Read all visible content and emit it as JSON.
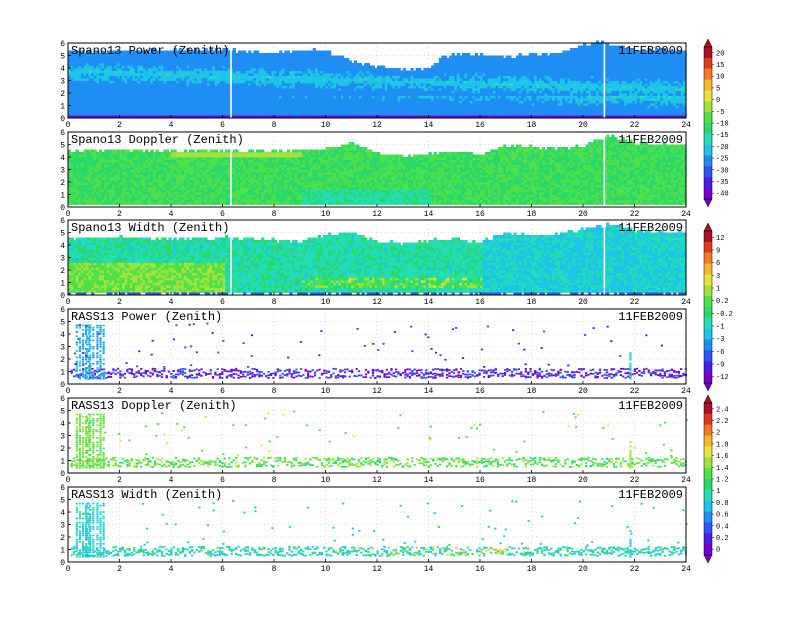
{
  "chart_data": [
    {
      "type": "heatmap",
      "title": "Spano13 Power (Zenith)",
      "date": "11FEB2009",
      "xlim": [
        0,
        24
      ],
      "ylim": [
        0,
        6
      ],
      "xticks": [
        "0",
        "2",
        "4",
        "6",
        "8",
        "10",
        "12",
        "14",
        "16",
        "18",
        "20",
        "22",
        "24"
      ],
      "yticks": [
        "0",
        "1",
        "2",
        "3",
        "4",
        "5",
        "6"
      ],
      "top_profile": [
        [
          0,
          5.3
        ],
        [
          1,
          5.2
        ],
        [
          2,
          5.3
        ],
        [
          3,
          5.3
        ],
        [
          4,
          5.4
        ],
        [
          5,
          5.4
        ],
        [
          6,
          5.4
        ],
        [
          7,
          5.2
        ],
        [
          8,
          5.1
        ],
        [
          9,
          5.3
        ],
        [
          10,
          5.3
        ],
        [
          11,
          4.4
        ],
        [
          12,
          4.0
        ],
        [
          13,
          3.7
        ],
        [
          14,
          3.9
        ],
        [
          14.5,
          4.8
        ],
        [
          15,
          5.0
        ],
        [
          16,
          5.0
        ],
        [
          17,
          4.8
        ],
        [
          18,
          5.0
        ],
        [
          19,
          5.1
        ],
        [
          19.8,
          5.6
        ],
        [
          20.5,
          6.0
        ],
        [
          22,
          5.4
        ],
        [
          24,
          5.3
        ]
      ],
      "description": "reflectivity-style power; warm band descending 3.6 km -> 2.2 km",
      "colorbar": {
        "ticks": [
          "20",
          "15",
          "10",
          "5",
          "0",
          "-5",
          "-10",
          "-15",
          "-20",
          "-25",
          "-30",
          "-35",
          "-40"
        ]
      }
    },
    {
      "type": "heatmap",
      "title": "Spano13 Doppler (Zenith)",
      "date": "11FEB2009",
      "xlim": [
        0,
        24
      ],
      "ylim": [
        0,
        6
      ],
      "xticks": [
        "0",
        "2",
        "4",
        "6",
        "8",
        "10",
        "12",
        "14",
        "16",
        "18",
        "20",
        "22",
        "24"
      ],
      "yticks": [
        "0",
        "1",
        "2",
        "3",
        "4",
        "5",
        "6"
      ],
      "top_profile": [
        [
          0,
          4.4
        ],
        [
          2,
          4.5
        ],
        [
          4,
          4.4
        ],
        [
          5,
          4.5
        ],
        [
          6,
          4.4
        ],
        [
          7,
          4.3
        ],
        [
          8,
          4.4
        ],
        [
          9,
          4.4
        ],
        [
          10,
          4.6
        ],
        [
          11,
          5.0
        ],
        [
          12,
          4.2
        ],
        [
          13,
          4.0
        ],
        [
          14,
          4.2
        ],
        [
          15,
          4.3
        ],
        [
          16,
          4.2
        ],
        [
          17,
          4.9
        ],
        [
          18,
          4.7
        ],
        [
          19,
          4.6
        ],
        [
          20,
          4.8
        ],
        [
          21,
          5.6
        ],
        [
          22,
          5.0
        ],
        [
          24,
          4.9
        ]
      ],
      "colorbar": null
    },
    {
      "type": "heatmap",
      "title": "Spano13 Width (Zenith)",
      "date": "11FEB2009",
      "xlim": [
        0,
        24
      ],
      "ylim": [
        0,
        6
      ],
      "xticks": [
        "0",
        "2",
        "4",
        "6",
        "8",
        "10",
        "12",
        "14",
        "16",
        "18",
        "20",
        "22",
        "24"
      ],
      "yticks": [
        "0",
        "1",
        "2",
        "3",
        "4",
        "5",
        "6"
      ],
      "top_profile": [
        [
          0,
          4.4
        ],
        [
          2,
          4.5
        ],
        [
          4,
          4.4
        ],
        [
          6,
          4.5
        ],
        [
          7,
          4.4
        ],
        [
          8,
          4.3
        ],
        [
          9,
          4.3
        ],
        [
          10,
          4.7
        ],
        [
          11,
          4.9
        ],
        [
          12,
          4.2
        ],
        [
          13,
          4.0
        ],
        [
          14,
          4.3
        ],
        [
          15,
          4.4
        ],
        [
          16,
          4.2
        ],
        [
          17,
          4.9
        ],
        [
          18,
          4.7
        ],
        [
          19,
          4.8
        ],
        [
          20,
          5.2
        ],
        [
          21,
          5.6
        ],
        [
          22,
          5.0
        ],
        [
          24,
          4.9
        ]
      ],
      "colorbar": {
        "ticks": [
          "12",
          "9",
          "6",
          "3",
          "1",
          "0.2",
          "-0.2",
          "-1",
          "-3",
          "-6",
          "-9",
          "-12"
        ]
      }
    },
    {
      "type": "heatmap",
      "title": "RASS13 Power (Zenith)",
      "date": "11FEB2009",
      "xlim": [
        0,
        24
      ],
      "ylim": [
        0,
        6
      ],
      "xticks": [
        "0",
        "2",
        "4",
        "6",
        "8",
        "10",
        "12",
        "14",
        "16",
        "18",
        "20",
        "22",
        "24"
      ],
      "yticks": [
        "0",
        "1",
        "2",
        "3",
        "4",
        "5",
        "6"
      ],
      "description": "sparse RASS returns mostly 0.5-1.3 km; tall columns near 0-1.5 h and 21.8 h",
      "colorbar": null
    },
    {
      "type": "heatmap",
      "title": "RASS13 Doppler (Zenith)",
      "date": "11FEB2009",
      "xlim": [
        0,
        24
      ],
      "ylim": [
        0,
        6
      ],
      "xticks": [
        "0",
        "2",
        "4",
        "6",
        "8",
        "10",
        "12",
        "14",
        "16",
        "18",
        "20",
        "22",
        "24"
      ],
      "yticks": [
        "0",
        "1",
        "2",
        "3",
        "4",
        "5",
        "6"
      ],
      "colorbar": {
        "ticks": [
          "2.4",
          "2.2",
          "2",
          "1.8",
          "1.6",
          "1.4",
          "1.2",
          "1",
          "0.8",
          "0.6",
          "0.4",
          "0.2",
          "0"
        ]
      }
    },
    {
      "type": "heatmap",
      "title": "RASS13 Width (Zenith)",
      "date": "11FEB2009",
      "xlim": [
        0,
        24
      ],
      "ylim": [
        0,
        6
      ],
      "xticks": [
        "0",
        "2",
        "4",
        "6",
        "8",
        "10",
        "12",
        "14",
        "16",
        "18",
        "20",
        "22",
        "24"
      ],
      "yticks": [
        "0",
        "1",
        "2",
        "3",
        "4",
        "5",
        "6"
      ],
      "colorbar": null
    }
  ],
  "colors": {
    "palette": [
      "#7a00d0",
      "#4a1fe8",
      "#2f56f5",
      "#1f8ef5",
      "#1ec5e8",
      "#22ddb5",
      "#2bd96a",
      "#4fe04a",
      "#a3e23a",
      "#e8e23a",
      "#f5b830",
      "#f57a24",
      "#e03a1e",
      "#b0102a"
    ]
  }
}
